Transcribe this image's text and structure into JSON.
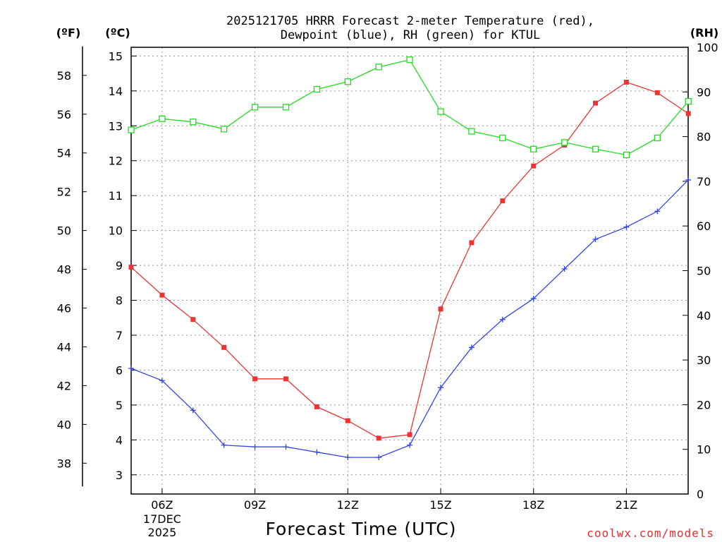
{
  "chart_data": {
    "type": "line",
    "title_line1": "2025121705 HRRR Forecast 2-meter Temperature (red),",
    "title_line2": "Dewpoint (blue), RH (green) for KTUL",
    "xlabel": "Forecast Time (UTC)",
    "credit": "coolwx.com/models",
    "units": {
      "fahrenheit": "(ºF)",
      "celsius": "(ºC)",
      "rh": "(RH)"
    },
    "x_hours": [
      5,
      6,
      7,
      8,
      9,
      10,
      11,
      12,
      13,
      14,
      15,
      16,
      17,
      18,
      19,
      20,
      21,
      22,
      23
    ],
    "x_ticks": [
      {
        "hour": 6,
        "label": "06Z",
        "sub1": "17DEC",
        "sub2": "2025"
      },
      {
        "hour": 9,
        "label": "09Z"
      },
      {
        "hour": 12,
        "label": "12Z"
      },
      {
        "hour": 15,
        "label": "15Z"
      },
      {
        "hour": 18,
        "label": "18Z"
      },
      {
        "hour": 21,
        "label": "21Z"
      }
    ],
    "celsius_axis": {
      "min": 2.45,
      "max": 15.25,
      "ticks": [
        "3",
        "4",
        "5",
        "6",
        "7",
        "8",
        "9",
        "10",
        "11",
        "12",
        "13",
        "14",
        "15"
      ]
    },
    "fahrenheit_axis": {
      "ticks": [
        "38",
        "40",
        "42",
        "44",
        "46",
        "48",
        "50",
        "52",
        "54",
        "56",
        "58"
      ]
    },
    "rh_axis": {
      "min": 0,
      "max": 100,
      "ticks": [
        "0",
        "10",
        "20",
        "30",
        "40",
        "50",
        "60",
        "70",
        "80",
        "90",
        "100"
      ]
    },
    "series": [
      {
        "name": "Temperature",
        "unit": "C",
        "color": "#ee3333",
        "marker": "filled-square",
        "values": [
          8.95,
          8.15,
          7.45,
          6.65,
          5.75,
          5.75,
          4.95,
          4.55,
          4.05,
          4.15,
          7.75,
          9.65,
          10.85,
          11.85,
          12.45,
          13.65,
          14.25,
          13.95,
          13.35
        ]
      },
      {
        "name": "Dewpoint",
        "unit": "C",
        "color": "#3344ee",
        "marker": "plus",
        "values": [
          6.05,
          5.7,
          4.85,
          3.85,
          3.8,
          3.8,
          3.65,
          3.5,
          3.5,
          3.85,
          5.5,
          6.65,
          7.45,
          8.05,
          8.9,
          9.75,
          10.1,
          10.55,
          11.45
        ]
      },
      {
        "name": "RH",
        "unit": "%",
        "color": "#22dd22",
        "marker": "open-square",
        "values": [
          81.5,
          84.0,
          83.3,
          81.7,
          86.6,
          86.6,
          90.6,
          92.3,
          95.6,
          97.2,
          85.6,
          81.2,
          79.7,
          77.2,
          78.7,
          77.2,
          75.9,
          79.7,
          87.9
        ]
      }
    ]
  }
}
